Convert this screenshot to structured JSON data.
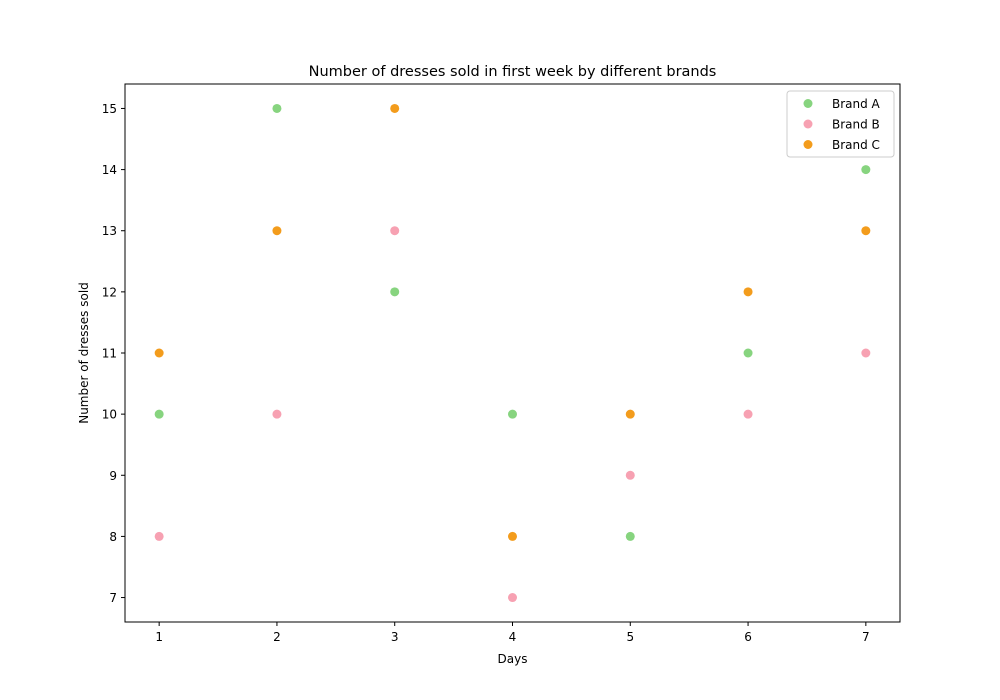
{
  "chart_data": {
    "type": "scatter",
    "title": "Number of dresses sold in first week by different brands",
    "xlabel": "Days",
    "ylabel": "Number of dresses sold",
    "xlim": [
      0.71,
      7.29
    ],
    "ylim": [
      6.6,
      15.4
    ],
    "xticks": [
      1,
      2,
      3,
      4,
      5,
      6,
      7
    ],
    "yticks": [
      7,
      8,
      9,
      10,
      11,
      12,
      13,
      14,
      15
    ],
    "grid": false,
    "legend_position": "top-right",
    "x": [
      1,
      2,
      3,
      4,
      5,
      6,
      7
    ],
    "series": [
      {
        "name": "Brand A",
        "color": "#87d47f",
        "values": [
          10,
          15,
          12,
          10,
          8,
          11,
          14
        ]
      },
      {
        "name": "Brand B",
        "color": "#f7a1b2",
        "values": [
          8,
          10,
          13,
          7,
          9,
          10,
          11
        ]
      },
      {
        "name": "Brand C",
        "color": "#f39c1c",
        "values": [
          11,
          13,
          15,
          8,
          10,
          12,
          13
        ]
      }
    ]
  }
}
